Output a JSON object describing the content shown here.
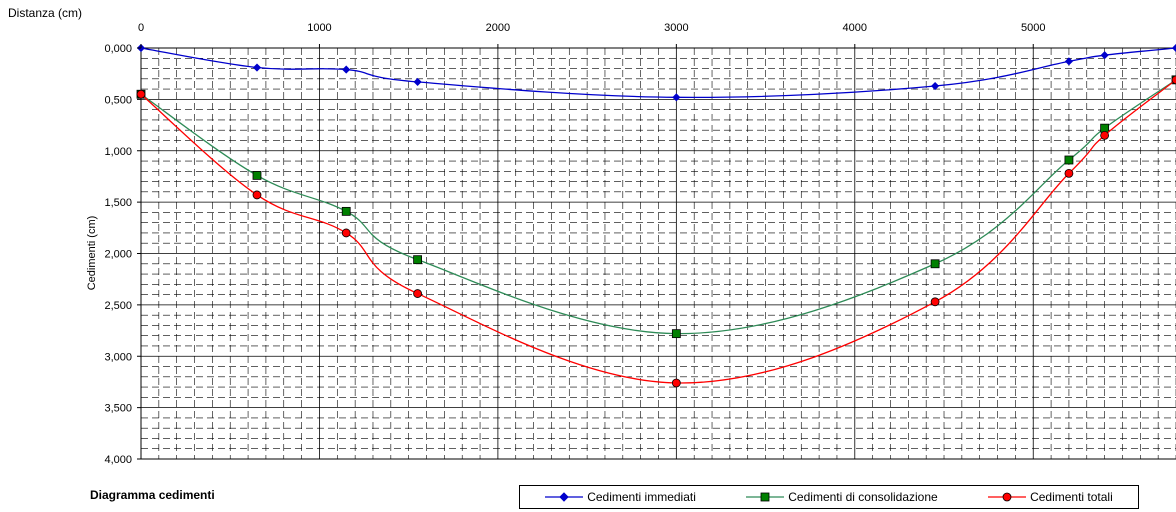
{
  "chart_data": {
    "type": "line",
    "title": "Diagramma cedimenti",
    "xlabel": "Distanza (cm)",
    "ylabel": "Cedimenti (cm)",
    "xlim": [
      0,
      5800
    ],
    "ylim": [
      0,
      4
    ],
    "y_inverted": true,
    "x_axis_position": "top",
    "grid": true,
    "legend_position": "bottom",
    "x_ticks": [
      "0",
      "1000",
      "2000",
      "3000",
      "4000",
      "5000"
    ],
    "y_ticks": [
      "0,000",
      "0,500",
      "1,000",
      "1,500",
      "2,000",
      "2,500",
      "3,000",
      "3,500",
      "4,000"
    ],
    "series": [
      {
        "name": "Cedimenti immediati",
        "color": "#0000cc",
        "marker": "diamond",
        "x": [
          0,
          650,
          1150,
          1550,
          3000,
          4450,
          5200,
          5400,
          5800
        ],
        "y": [
          0.0,
          0.19,
          0.21,
          0.33,
          0.48,
          0.37,
          0.13,
          0.07,
          0.0
        ]
      },
      {
        "name": "Cedimenti di consolidazione",
        "color": "#2e8b57",
        "marker": "square",
        "x": [
          0,
          650,
          1150,
          1550,
          3000,
          4450,
          5200,
          5400,
          5800
        ],
        "y": [
          0.45,
          1.24,
          1.59,
          2.06,
          2.78,
          2.1,
          1.09,
          0.78,
          0.31
        ]
      },
      {
        "name": "Cedimenti totali",
        "color": "#ff0000",
        "marker": "circle",
        "x": [
          0,
          650,
          1150,
          1550,
          3000,
          4450,
          5200,
          5400,
          5800
        ],
        "y": [
          0.45,
          1.43,
          1.8,
          2.39,
          3.26,
          2.47,
          1.22,
          0.85,
          0.31
        ]
      }
    ]
  }
}
